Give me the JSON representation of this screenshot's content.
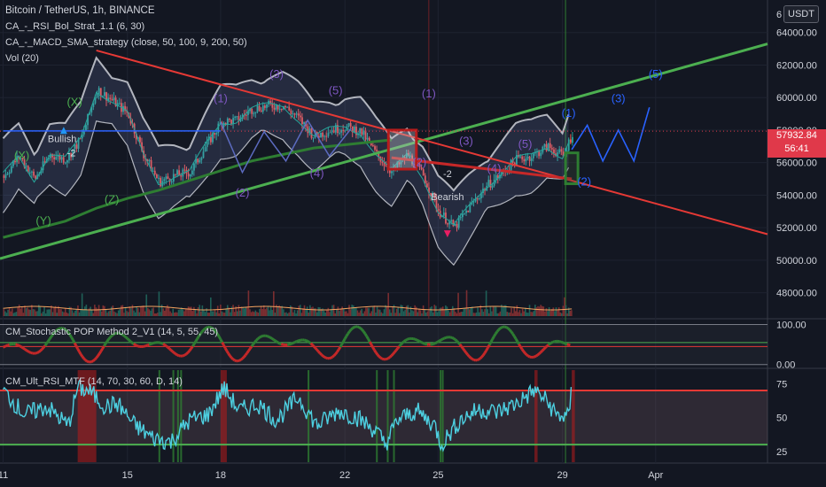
{
  "header": {
    "title": "Bitcoin / TetherUS, 1h, BINANCE",
    "indicators": [
      "CA_-_RSI_Bol_Strat_1.1 (6, 30)",
      "CA_-_MACD_SMA_strategy (close, 50, 100, 9, 200, 50)",
      "Vol (20)"
    ],
    "currency_button": "USDT"
  },
  "price_tag": {
    "price": "57932.84",
    "countdown": "56:41",
    "color": "#e0394a"
  },
  "colors": {
    "background": "#131722",
    "up": "#26a69a",
    "down": "#ef5350",
    "trend_red": "#e53935",
    "trend_green": "#4caf50",
    "wave_blue": "#2962ff"
  },
  "chart_data": [
    {
      "type": "line",
      "title": "Bitcoin / TetherUS, 1h, BINANCE",
      "y_ticks": [
        "48000.00",
        "50000.00",
        "52000.00",
        "54000.00",
        "56000.00",
        "58000.00",
        "60000.00",
        "62000.00",
        "64000.00"
      ],
      "y_top_partial": "6",
      "ylim": [
        46400,
        66000
      ],
      "x_ticks": [
        "11",
        "15",
        "18",
        "22",
        "25",
        "29",
        "Apr"
      ],
      "x_tick_days": [
        11,
        15,
        18,
        22,
        25,
        29,
        32
      ],
      "x_range_days": [
        10.9,
        35.6
      ],
      "series": [
        {
          "x": [
            11.0,
            11.5,
            12.0,
            12.5,
            13.0,
            13.5,
            14.0,
            14.5,
            15.0,
            15.5,
            16.0,
            16.5,
            17.0,
            17.5,
            18.0,
            18.5,
            19.0,
            19.5,
            20.0,
            20.5,
            21.0,
            21.5,
            22.0,
            22.5,
            23.0,
            23.5,
            24.0,
            24.5,
            25.0,
            25.5,
            26.0,
            26.5,
            27.0,
            27.5,
            28.0,
            28.5,
            29.0,
            29.3
          ],
          "values": [
            55200,
            56400,
            55000,
            56500,
            56200,
            57500,
            60500,
            59800,
            59000,
            56500,
            54800,
            55200,
            55400,
            57000,
            58500,
            58600,
            59300,
            59500,
            59500,
            58700,
            57600,
            58000,
            58200,
            57900,
            56500,
            55400,
            56500,
            55200,
            53000,
            52000,
            53300,
            54500,
            55300,
            56200,
            56400,
            57000,
            56400,
            57800
          ]
        },
        {
          "name": "MA-200",
          "x": [
            11.0,
            12.0,
            13.0,
            14.0,
            15.0,
            16.0,
            17.0,
            18.0,
            19.0,
            20.0,
            21.0,
            22.0,
            23.0,
            23.5
          ],
          "values": [
            51400,
            51900,
            52400,
            53200,
            53800,
            54300,
            54900,
            55500,
            56100,
            56500,
            56900,
            57100,
            57300,
            57400
          ]
        },
        {
          "name": "trendline-rising",
          "x": [
            10.9,
            35.6
          ],
          "values": [
            50100,
            63300
          ]
        },
        {
          "name": "trendline-falling",
          "x": [
            14.0,
            35.6
          ],
          "values": [
            62900,
            51600
          ]
        }
      ],
      "volume_style": "bars at bottom of main pane",
      "price_line": 57932.84,
      "elliott_labels": [
        "(X)",
        "(X)",
        "(Y)",
        "(Z)",
        "(1)",
        "(2)",
        "(3)",
        "(4)",
        "(5)",
        "(1)",
        "(3)",
        "(5)",
        "(1)",
        "(2)",
        "(3)",
        "(4)",
        "(5)",
        "(2)"
      ],
      "annotations": [
        "Bullish",
        "-2",
        "-2",
        "Bearish"
      ],
      "projection_x": [
        29.3,
        29.8,
        30.3,
        30.8,
        31.3,
        31.8
      ],
      "projection_values": [
        56800,
        58300,
        56100,
        58000,
        56100,
        59400
      ]
    },
    {
      "type": "line",
      "title": "CM_Stochastic POP Method 2_V1 (14, 5, 55, 45)",
      "y_ticks": [
        "100.00",
        "0.00"
      ],
      "ylim": [
        -5,
        110
      ],
      "grid": true,
      "levels": [
        55,
        45
      ]
    },
    {
      "type": "line",
      "title": "CM_Ult_RSI_MTF (14, 70, 30, 60, D, 14)",
      "y_ticks": [
        "75",
        "50",
        "25"
      ],
      "ylim": [
        17,
        85
      ],
      "levels": [
        70,
        30
      ],
      "series": [
        {
          "name": "RSI",
          "x": [
            11.0,
            11.7,
            12.4,
            13.1,
            13.4,
            13.8,
            14.3,
            14.7,
            15.2,
            15.8,
            16.4,
            17.0,
            17.6,
            18.1,
            18.6,
            19.2,
            19.8,
            20.5,
            21.1,
            21.8,
            22.4,
            23.0,
            23.3,
            23.7,
            24.3,
            24.9,
            25.1,
            25.7,
            26.3,
            26.9,
            27.5,
            28.1,
            28.5,
            28.8,
            29.2,
            29.3
          ],
          "values": [
            70,
            52,
            58,
            44,
            72,
            69,
            58,
            60,
            45,
            35,
            32,
            48,
            52,
            72,
            55,
            60,
            48,
            65,
            44,
            55,
            50,
            40,
            30,
            48,
            55,
            44,
            30,
            48,
            56,
            54,
            60,
            70,
            62,
            52,
            50,
            72
          ]
        }
      ]
    }
  ]
}
